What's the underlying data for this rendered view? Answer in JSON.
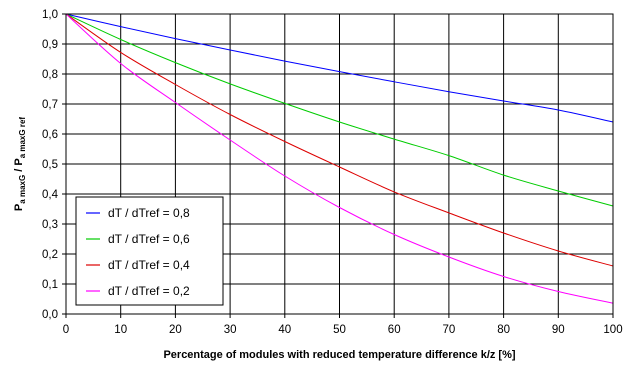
{
  "chart_data": {
    "type": "line",
    "xlabel": "Percentage of modules with reduced temperature difference k/z [%]",
    "ylabel": {
      "numerator_main": "P",
      "numerator_sub": "a maxG",
      "separator": " / ",
      "denominator_main": "P",
      "denominator_sub": "a maxG ref"
    },
    "xlim": [
      0,
      100
    ],
    "ylim": [
      0,
      1
    ],
    "x_ticks": [
      "0",
      "10",
      "20",
      "30",
      "40",
      "50",
      "60",
      "70",
      "80",
      "90",
      "100"
    ],
    "y_ticks": [
      "0,0",
      "0,1",
      "0,2",
      "0,3",
      "0,4",
      "0,5",
      "0,6",
      "0,7",
      "0,8",
      "0,9",
      "1,0"
    ],
    "grid": true,
    "legend_position": "bottom-left",
    "x": [
      0,
      10,
      20,
      30,
      40,
      50,
      60,
      70,
      80,
      90,
      100
    ],
    "series": [
      {
        "name": "dT / dTref = 0,8",
        "color": "#0000ff",
        "values": [
          1.0,
          0.958,
          0.918,
          0.88,
          0.843,
          0.808,
          0.774,
          0.741,
          0.71,
          0.68,
          0.64
        ]
      },
      {
        "name": "dT / dTref = 0,6",
        "color": "#00cc00",
        "values": [
          1.0,
          0.915,
          0.838,
          0.767,
          0.702,
          0.64,
          0.583,
          0.528,
          0.463,
          0.41,
          0.36
        ]
      },
      {
        "name": "dT / dTref = 0,4",
        "color": "#dd0000",
        "values": [
          1.0,
          0.872,
          0.765,
          0.665,
          0.575,
          0.49,
          0.407,
          0.337,
          0.27,
          0.21,
          0.16
        ]
      },
      {
        "name": "dT / dTref = 0,2",
        "color": "#ff00ff",
        "values": [
          1.0,
          0.835,
          0.705,
          0.58,
          0.46,
          0.355,
          0.265,
          0.19,
          0.125,
          0.075,
          0.036
        ]
      }
    ]
  }
}
